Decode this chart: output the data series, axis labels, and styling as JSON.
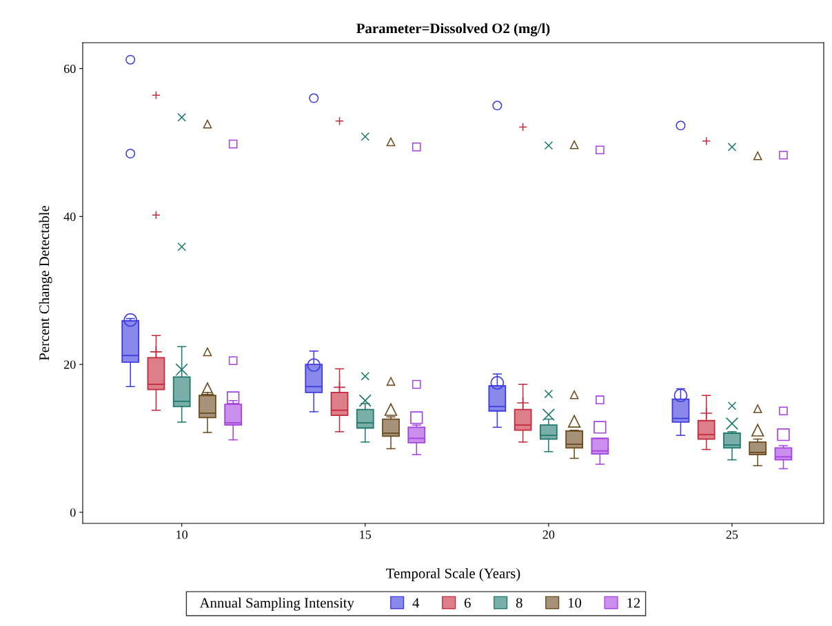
{
  "chart_data": {
    "type": "box",
    "title": "Parameter=Dissolved O2 (mg/l)",
    "xlabel": "Temporal Scale (Years)",
    "ylabel": "Percent Change Detectable",
    "legend_title": "Annual Sampling Intensity",
    "legend": "bottom",
    "grid": false,
    "x": [
      10,
      15,
      20,
      25
    ],
    "xlim": [
      7.3,
      27.5
    ],
    "xticks": [
      10,
      15,
      20,
      25
    ],
    "ylim": [
      -1.5,
      63.5
    ],
    "yticks": [
      0,
      20,
      40,
      60
    ],
    "series": [
      {
        "name": "4",
        "color": "#3b3be0",
        "marker": "circle",
        "boxes": [
          {
            "low": 17.0,
            "q1": 20.3,
            "median": 21.2,
            "q3": 25.9,
            "high": 26.2,
            "mean": 26.0,
            "outliers": [
              61.2,
              48.5
            ]
          },
          {
            "low": 13.6,
            "q1": 16.2,
            "median": 17.0,
            "q3": 20.0,
            "high": 21.8,
            "mean": 19.9,
            "outliers": [
              56.0
            ]
          },
          {
            "low": 11.5,
            "q1": 13.7,
            "median": 14.3,
            "q3": 17.1,
            "high": 18.7,
            "mean": 17.5,
            "outliers": [
              55.0
            ]
          },
          {
            "low": 10.4,
            "q1": 12.2,
            "median": 12.7,
            "q3": 15.3,
            "high": 16.7,
            "mean": 15.8,
            "outliers": [
              52.3
            ]
          }
        ]
      },
      {
        "name": "6",
        "color": "#c42a3c",
        "marker": "plus",
        "boxes": [
          {
            "low": 13.8,
            "q1": 16.6,
            "median": 17.3,
            "q3": 20.9,
            "high": 23.9,
            "mean": 21.7,
            "outliers": [
              56.4,
              40.2
            ]
          },
          {
            "low": 10.9,
            "q1": 13.1,
            "median": 13.8,
            "q3": 16.2,
            "high": 19.4,
            "mean": 16.9,
            "outliers": [
              52.9
            ]
          },
          {
            "low": 9.5,
            "q1": 11.1,
            "median": 11.8,
            "q3": 13.9,
            "high": 17.3,
            "mean": 14.8,
            "outliers": [
              52.1
            ]
          },
          {
            "low": 8.5,
            "q1": 9.9,
            "median": 10.5,
            "q3": 12.4,
            "high": 15.8,
            "mean": 13.4,
            "outliers": [
              50.2
            ]
          }
        ]
      },
      {
        "name": "8",
        "color": "#1f7a6e",
        "marker": "cross",
        "boxes": [
          {
            "low": 12.2,
            "q1": 14.3,
            "median": 15.0,
            "q3": 18.3,
            "high": 22.4,
            "mean": 19.3,
            "outliers": [
              53.4,
              35.9
            ]
          },
          {
            "low": 9.5,
            "q1": 11.4,
            "median": 12.1,
            "q3": 13.9,
            "high": 14.7,
            "mean": 15.1,
            "outliers": [
              50.8,
              18.4
            ]
          },
          {
            "low": 8.2,
            "q1": 9.9,
            "median": 10.4,
            "q3": 11.8,
            "high": 12.6,
            "mean": 13.2,
            "outliers": [
              49.6,
              16.0
            ]
          },
          {
            "low": 7.1,
            "q1": 8.7,
            "median": 9.1,
            "q3": 10.7,
            "high": 10.9,
            "mean": 12.0,
            "outliers": [
              49.4,
              14.4
            ]
          }
        ]
      },
      {
        "name": "10",
        "color": "#6b4a1e",
        "marker": "triangle",
        "boxes": [
          {
            "low": 10.8,
            "q1": 12.8,
            "median": 13.4,
            "q3": 15.8,
            "high": 16.2,
            "mean": 16.7,
            "outliers": [
              52.5,
              21.7
            ]
          },
          {
            "low": 8.6,
            "q1": 10.3,
            "median": 10.7,
            "q3": 12.6,
            "high": 12.9,
            "mean": 13.9,
            "outliers": [
              50.1,
              17.7
            ]
          },
          {
            "low": 7.3,
            "q1": 8.7,
            "median": 9.2,
            "q3": 11.0,
            "high": 11.1,
            "mean": 12.3,
            "outliers": [
              49.7,
              15.9
            ]
          },
          {
            "low": 6.3,
            "q1": 7.8,
            "median": 8.1,
            "q3": 9.5,
            "high": 9.9,
            "mean": 11.1,
            "outliers": [
              48.2,
              14.0
            ]
          }
        ]
      },
      {
        "name": "12",
        "color": "#a642e0",
        "marker": "square",
        "boxes": [
          {
            "low": 9.8,
            "q1": 11.8,
            "median": 12.1,
            "q3": 14.6,
            "high": 15.1,
            "mean": 15.5,
            "outliers": [
              49.8,
              20.5
            ]
          },
          {
            "low": 7.8,
            "q1": 9.4,
            "median": 10.0,
            "q3": 11.5,
            "high": 11.8,
            "mean": 12.8,
            "outliers": [
              49.4,
              17.3
            ]
          },
          {
            "low": 6.5,
            "q1": 7.9,
            "median": 8.3,
            "q3": 10.0,
            "high": 10.0,
            "mean": 11.5,
            "outliers": [
              49.0,
              15.2
            ]
          },
          {
            "low": 5.9,
            "q1": 7.1,
            "median": 7.5,
            "q3": 8.7,
            "high": 9.0,
            "mean": 10.5,
            "outliers": [
              48.3,
              13.7
            ]
          }
        ]
      }
    ]
  }
}
